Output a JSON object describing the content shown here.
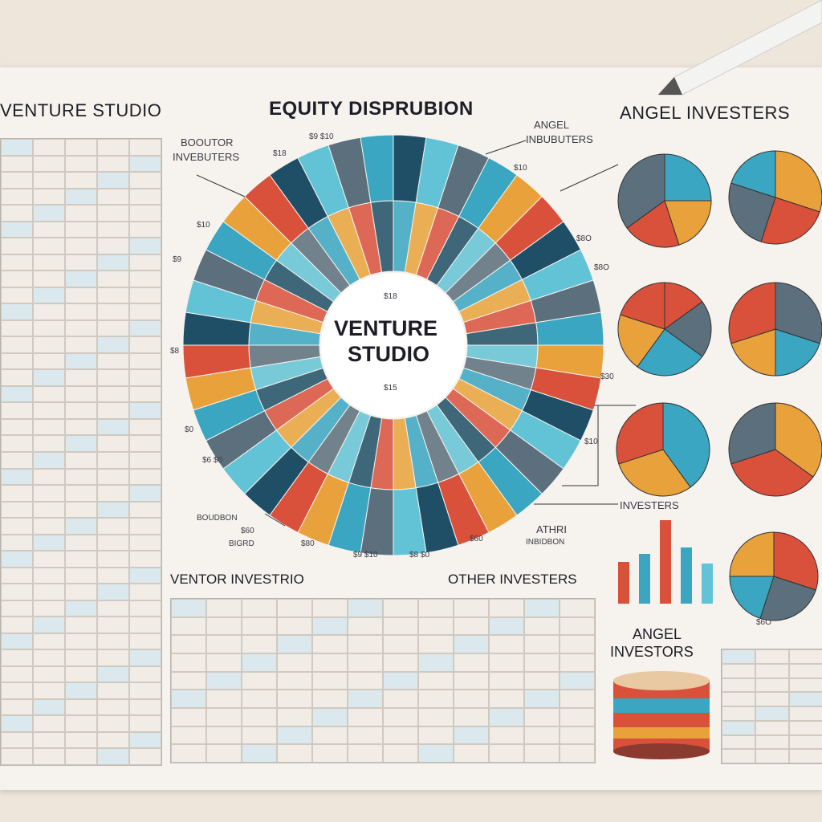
{
  "titles": {
    "left": "VENTURE STUDIO",
    "center": "EQUITY DISPRUBION",
    "right": "ANGEL INVESTERS"
  },
  "center_chart": {
    "label_line1": "VENTURE",
    "label_line2": "STUDIO",
    "top_value": "$18",
    "bottom_value": "$15"
  },
  "callouts": {
    "top_left_line1": "BOOUTOR",
    "top_left_line2": "INVEBUTERS",
    "top_right_line1": "ANGEL",
    "top_right_line2": "INBUBUTERS",
    "bottom_right_line1": "ATHRI",
    "bottom_right_line2": "INBIDBON",
    "bottom_left_line1": "BOUDBON",
    "bottom_left_line2": "BIGRD",
    "investers": "INVESTERS"
  },
  "section_labels": {
    "venture_investing": "VENTOR INVESTRIO",
    "other_investers": "OTHER INVESTERS",
    "angel_investors_line1": "ANGEL",
    "angel_investors_line2": "INVESTORS"
  },
  "scattered_values": [
    "$18",
    "$9 $10",
    "$9",
    "$10",
    "$8",
    "$8O",
    "$8O",
    "$10",
    "$10",
    "$9 $10",
    "$8 $0",
    "$60",
    "$60",
    "$80",
    "$30",
    "$0",
    "$6 $0",
    "$6O"
  ],
  "colors": {
    "teal": "#3aa6c1",
    "orange": "#e9a23b",
    "red": "#d9503b",
    "navy": "#1f4f66",
    "sky": "#63c3d6",
    "slate": "#5c6f7d",
    "paper": "#f6f3ee"
  }
}
